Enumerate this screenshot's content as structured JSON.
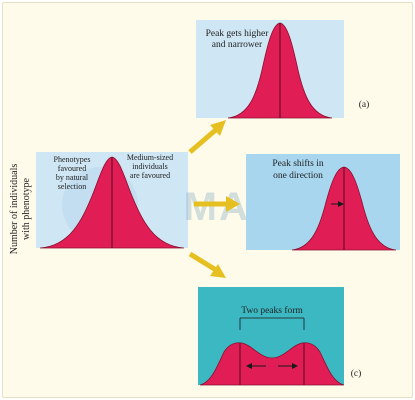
{
  "y_axis_title_lines": [
    "Number of individuals",
    "with phenotype"
  ],
  "watermark": "MARKS",
  "panels": {
    "original": {
      "label_left": [
        "Phenotypes",
        "favoured",
        "by natural",
        "selection"
      ],
      "label_right": [
        "Medium-sized",
        "individuals",
        "are favoured"
      ]
    },
    "a": {
      "caption": [
        "Peak gets higher",
        "and narrower"
      ],
      "tag": "(a)"
    },
    "b": {
      "caption": [
        "Peak shifts in",
        "one direction"
      ],
      "tag": ""
    },
    "c": {
      "caption": [
        "Two peaks form"
      ],
      "tag": "(c)"
    }
  },
  "colors": {
    "panel_bg_light": "#cfe6f4",
    "panel_bg_blue": "#a8d6ee",
    "panel_bg_teal": "#3cb8c2",
    "curve_fill": "#e01d54",
    "curve_stroke": "#8a1030",
    "arrow": "#e6c020"
  }
}
